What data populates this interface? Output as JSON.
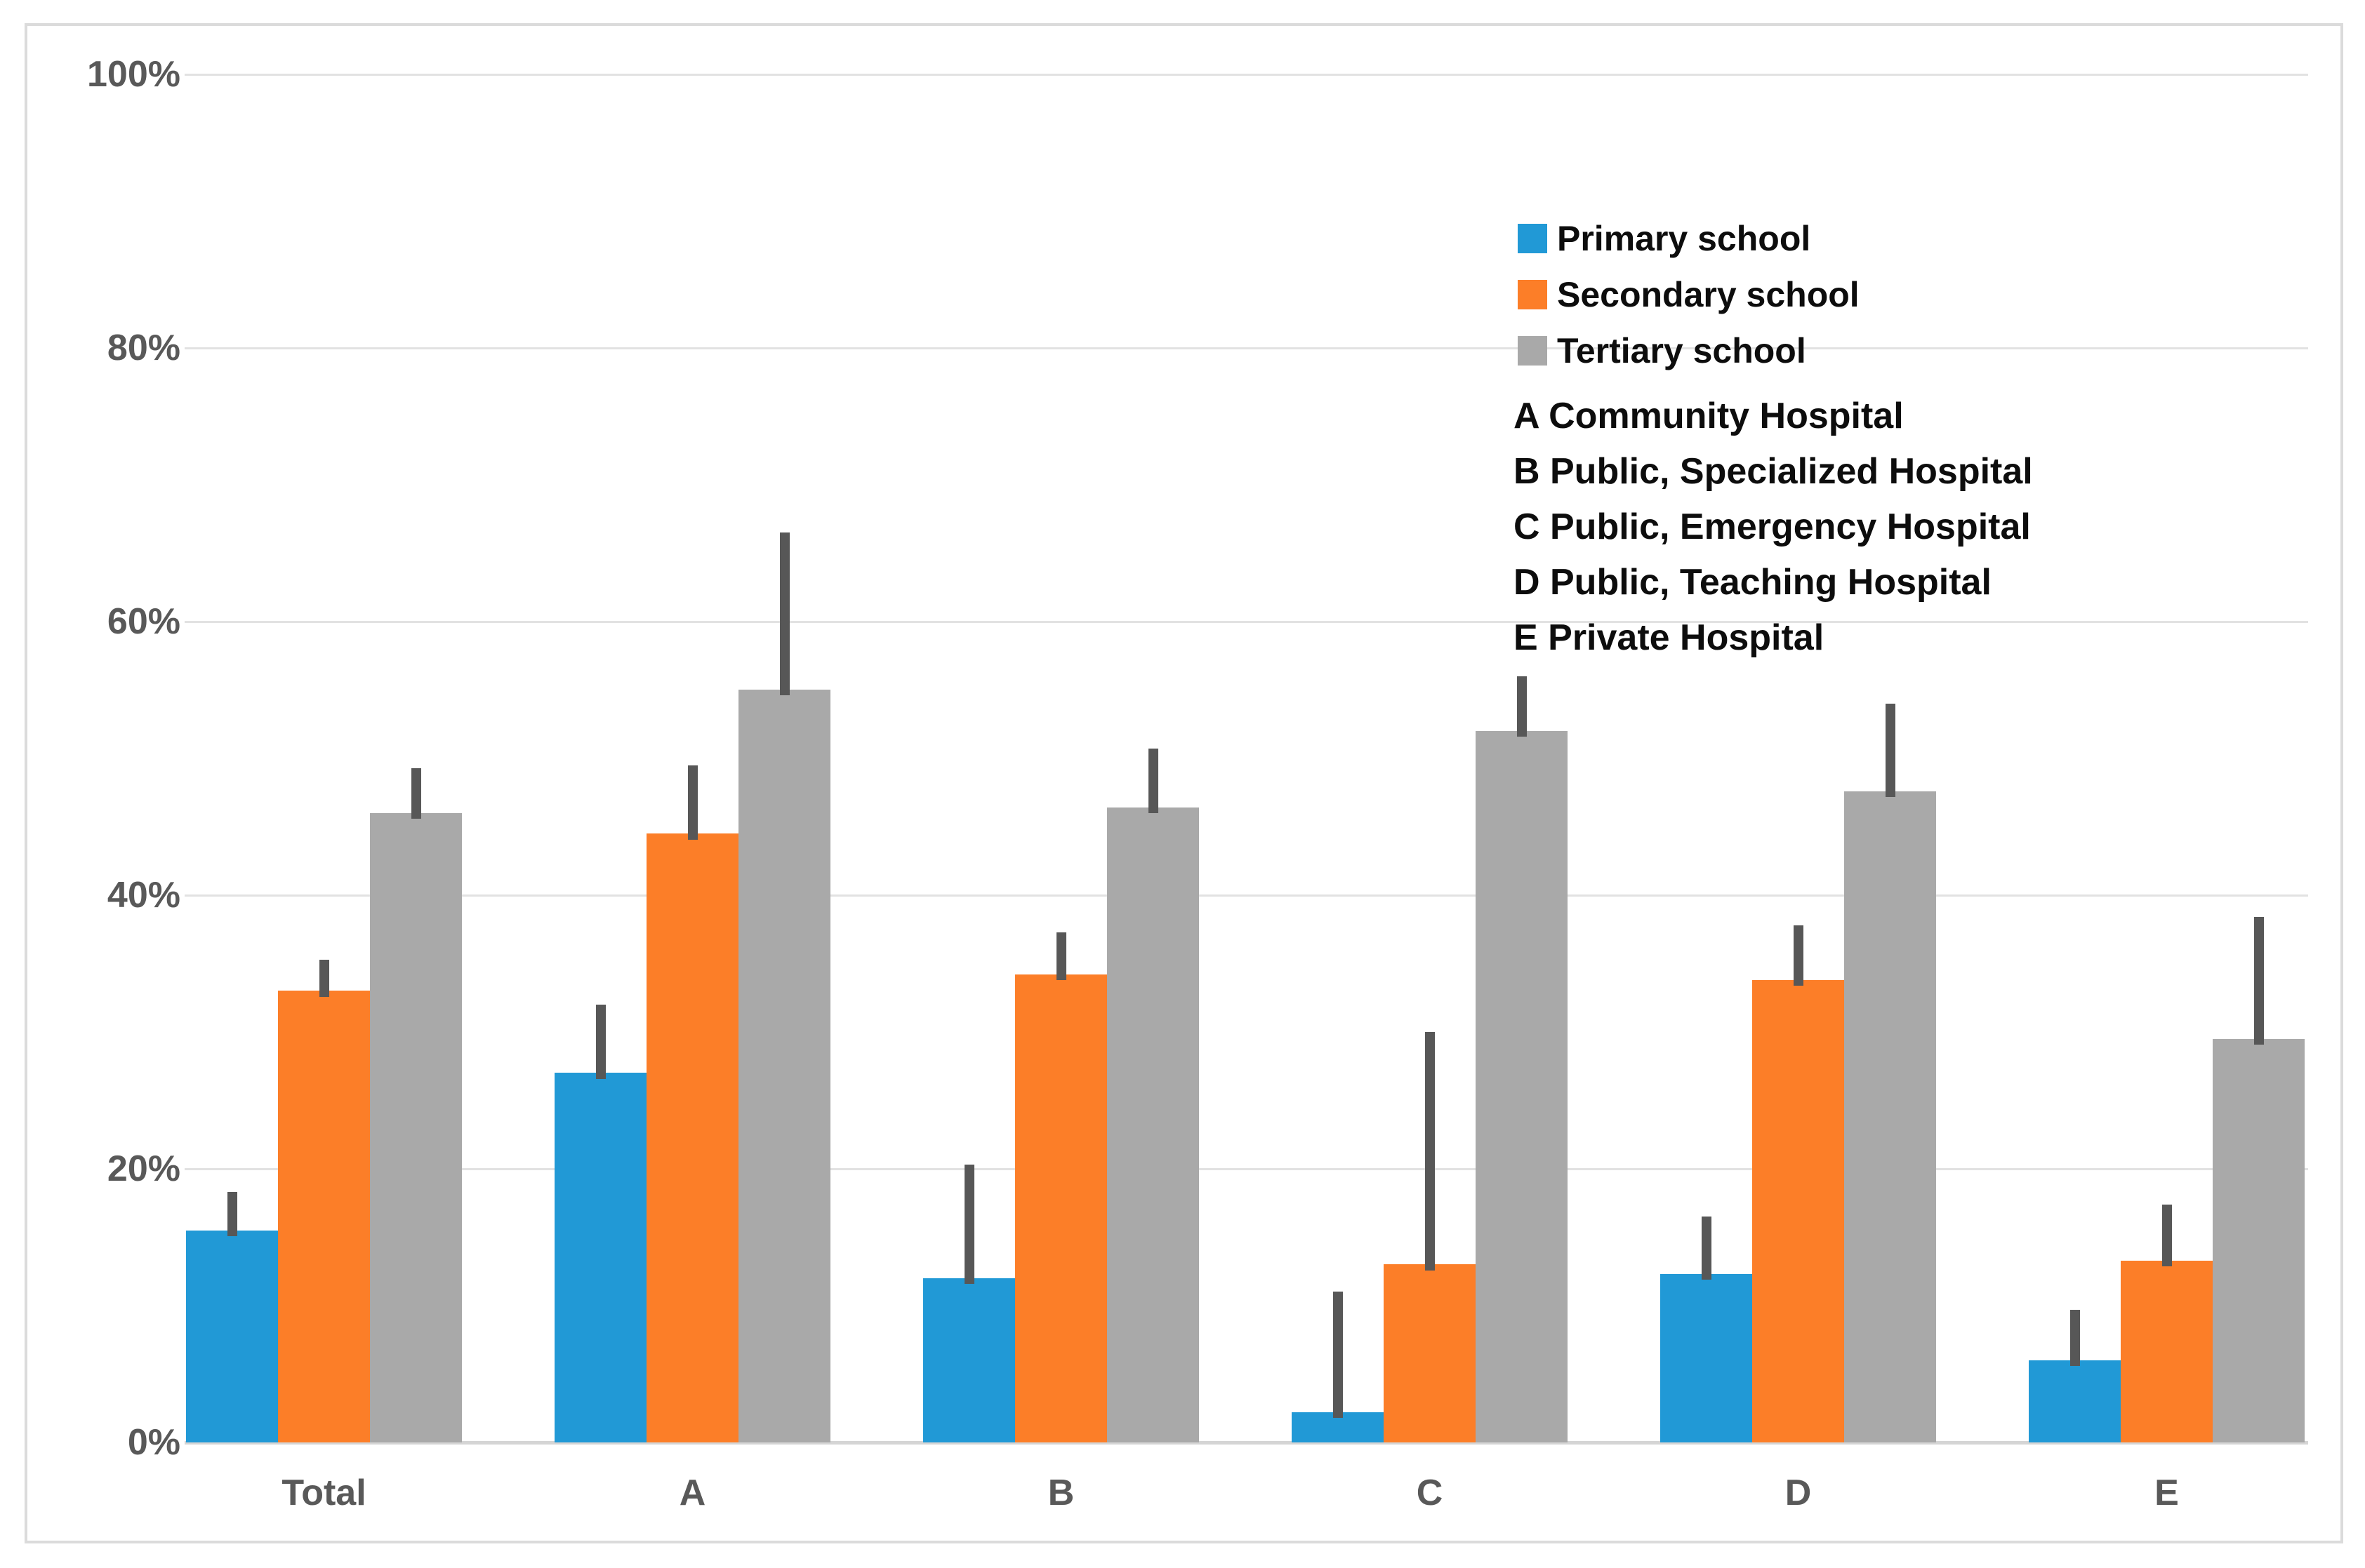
{
  "chart_data": {
    "type": "bar",
    "title": "",
    "xlabel": "",
    "ylabel": "",
    "ylim": [
      0,
      100
    ],
    "grid": true,
    "legend_position": "upper right",
    "categories": [
      "Total",
      "A",
      "B",
      "C",
      "D",
      "E"
    ],
    "yticks": [
      0,
      20,
      40,
      60,
      80,
      100
    ],
    "ytick_labels": [
      "0%",
      "20%",
      "40%",
      "60%",
      "80%",
      "100%"
    ],
    "series": [
      {
        "name": "Primary school",
        "color": "#2199d6",
        "values": [
          15.5,
          27.0,
          12.0,
          2.2,
          12.3,
          6.0
        ],
        "error_tops": [
          18.3,
          32.0,
          20.3,
          11.0,
          16.5,
          9.7
        ]
      },
      {
        "name": "Secondary school",
        "color": "#fc7e28",
        "values": [
          33.0,
          44.5,
          34.2,
          13.0,
          33.8,
          13.3
        ],
        "error_tops": [
          35.3,
          49.5,
          37.3,
          30.0,
          37.8,
          17.4
        ]
      },
      {
        "name": "Tertiary school",
        "color": "#a9a9a9",
        "values": [
          46.0,
          55.0,
          46.4,
          52.0,
          47.6,
          29.5
        ],
        "error_tops": [
          49.3,
          66.5,
          50.7,
          56.0,
          54.0,
          38.4
        ]
      }
    ],
    "error_bar_color": "#575757",
    "legend_notes": [
      "A Community Hospital",
      "B Public, Specialized Hospital",
      "C Public, Emergency Hospital",
      "D Public, Teaching Hospital",
      "E Private Hospital"
    ]
  },
  "layout_colors": {
    "frame_border": "#dbdbdb",
    "gridline": "#e2e2e2",
    "axis_line": "#d5d5d5",
    "tick_label": "#595959",
    "legend_text": "#0d0d0d"
  }
}
